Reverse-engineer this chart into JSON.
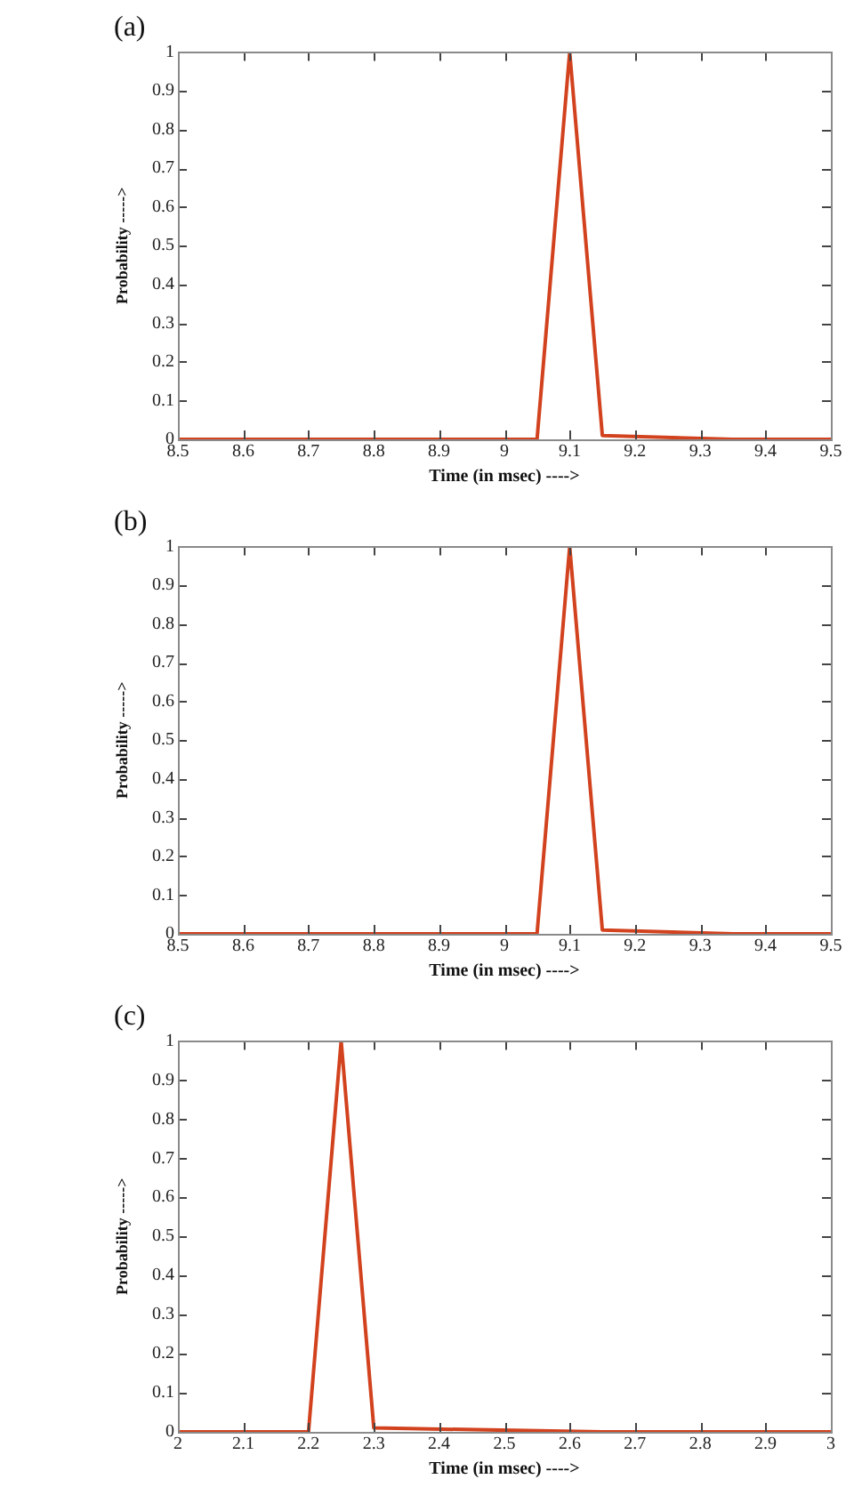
{
  "chart_data": [
    {
      "type": "line",
      "title": "(a)",
      "xlabel": "Time (in msec) ---->",
      "ylabel": "Probability ----->",
      "x": [
        8.5,
        9.05,
        9.1,
        9.15,
        9.35,
        9.5
      ],
      "series": [
        {
          "color": "#d2421e",
          "values": [
            0,
            0,
            1,
            0.01,
            0,
            0
          ]
        }
      ],
      "xlim": [
        8.5,
        9.5
      ],
      "xticks": [
        8.5,
        8.6,
        8.7,
        8.8,
        8.9,
        9,
        9.1,
        9.2,
        9.3,
        9.4,
        9.5
      ],
      "ylim": [
        0,
        1
      ],
      "yticks": [
        0,
        0.1,
        0.2,
        0.3,
        0.4,
        0.5,
        0.6,
        0.7,
        0.8,
        0.9,
        1
      ]
    },
    {
      "type": "line",
      "title": "(b)",
      "xlabel": "Time (in msec) ---->",
      "ylabel": "Probability ----->",
      "x": [
        8.5,
        9.05,
        9.1,
        9.15,
        9.35,
        9.5
      ],
      "series": [
        {
          "color": "#d2421e",
          "values": [
            0,
            0,
            1,
            0.01,
            0,
            0
          ]
        }
      ],
      "xlim": [
        8.5,
        9.5
      ],
      "xticks": [
        8.5,
        8.6,
        8.7,
        8.8,
        8.9,
        9,
        9.1,
        9.2,
        9.3,
        9.4,
        9.5
      ],
      "ylim": [
        0,
        1
      ],
      "yticks": [
        0,
        0.1,
        0.2,
        0.3,
        0.4,
        0.5,
        0.6,
        0.7,
        0.8,
        0.9,
        1
      ]
    },
    {
      "type": "line",
      "title": "(c)",
      "xlabel": "Time (in msec) ---->",
      "ylabel": "Probability ----->",
      "x": [
        2,
        2.2,
        2.25,
        2.3,
        2.65,
        3
      ],
      "series": [
        {
          "color": "#d2421e",
          "values": [
            0,
            0,
            1,
            0.01,
            0,
            0
          ]
        }
      ],
      "xlim": [
        2,
        3
      ],
      "xticks": [
        2,
        2.1,
        2.2,
        2.3,
        2.4,
        2.5,
        2.6,
        2.7,
        2.8,
        2.9,
        3
      ],
      "ylim": [
        0,
        1
      ],
      "yticks": [
        0,
        0.1,
        0.2,
        0.3,
        0.4,
        0.5,
        0.6,
        0.7,
        0.8,
        0.9,
        1
      ]
    }
  ]
}
